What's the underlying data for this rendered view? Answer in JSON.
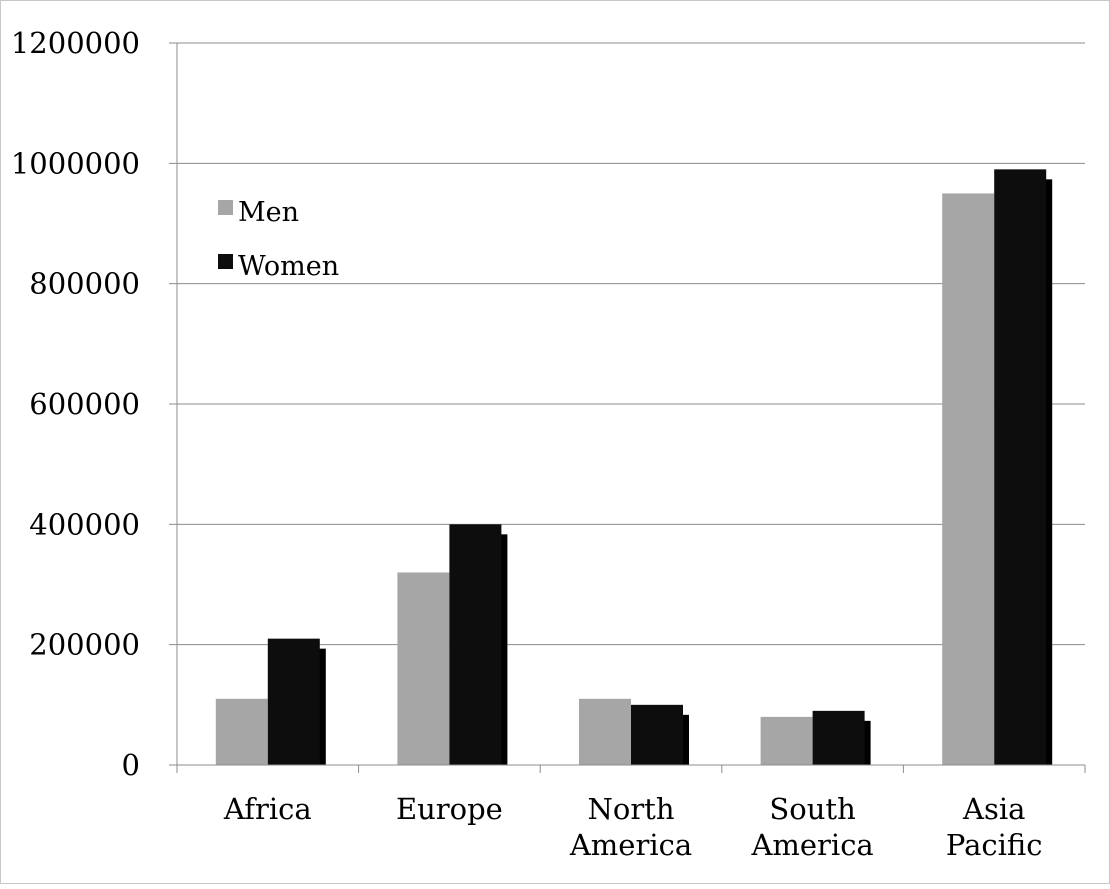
{
  "chart_data": {
    "type": "bar",
    "categories": [
      [
        "Africa"
      ],
      [
        "Europe"
      ],
      [
        "North",
        "America"
      ],
      [
        "South",
        "America"
      ],
      [
        "Asia",
        "Pacific"
      ]
    ],
    "series": [
      {
        "name": "Men",
        "color": "#a6a6a6",
        "values": [
          110000,
          320000,
          110000,
          80000,
          950000
        ]
      },
      {
        "name": "Women",
        "color": "#0d0d0d",
        "values": [
          210000,
          400000,
          100000,
          90000,
          990000
        ]
      }
    ],
    "title": "",
    "xlabel": "",
    "ylabel": "",
    "ylim": [
      0,
      1200000
    ],
    "yticks": [
      "0",
      "200000",
      "400000",
      "600000",
      "800000",
      "1000000",
      "1200000"
    ],
    "grid": true,
    "legend_position": "top-left",
    "gridline_color": "#8c8c8c"
  }
}
